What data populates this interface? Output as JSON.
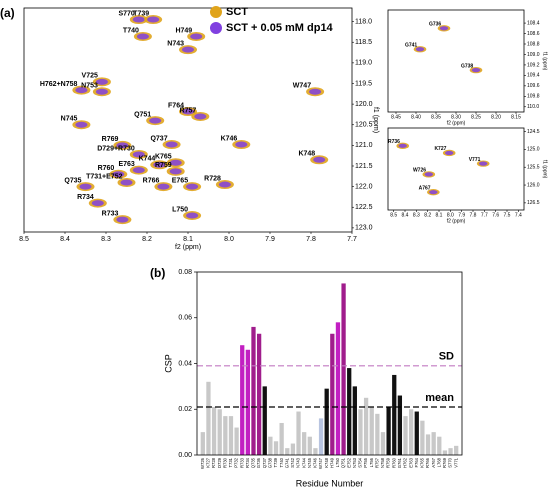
{
  "chart_data": [
    {
      "type": "scatter",
      "panel_label": "(a)",
      "xlabel": "f2 (ppm)",
      "ylabel": "f1 (ppm)",
      "series": [
        {
          "name": "SCT",
          "color": "#e0a41c"
        },
        {
          "name": "SCT + 0.05 mM dp14",
          "color": "#8040e0"
        }
      ],
      "labels": [
        "S770",
        "T739",
        "H749",
        "T740",
        "N743",
        "V725",
        "H762+N758",
        "N753",
        "F764",
        "W747",
        "R757",
        "Q751",
        "N745",
        "K746",
        "Q737",
        "R769",
        "D729+R730",
        "K765",
        "K744",
        "K748",
        "E763",
        "R759",
        "R760",
        "T731+E752",
        "R766",
        "E765",
        "R728",
        "Q735",
        "R734",
        "L750",
        "R733"
      ],
      "x": [
        8.22,
        8.185,
        8.08,
        8.21,
        8.1,
        8.31,
        8.36,
        8.31,
        8.1,
        7.79,
        8.07,
        8.18,
        8.36,
        7.97,
        8.14,
        8.26,
        8.22,
        8.13,
        8.17,
        7.78,
        8.22,
        8.13,
        8.27,
        8.25,
        8.16,
        8.09,
        8.01,
        8.35,
        8.32,
        8.09,
        8.26
      ],
      "y": [
        117.95,
        117.95,
        118.36,
        118.36,
        118.68,
        119.46,
        119.66,
        119.7,
        120.18,
        119.7,
        120.3,
        120.4,
        120.5,
        120.98,
        120.98,
        121.0,
        121.22,
        121.42,
        121.47,
        121.35,
        121.6,
        121.63,
        121.7,
        121.9,
        122.0,
        122.0,
        121.95,
        122.0,
        122.4,
        122.7,
        122.8
      ],
      "xlim": [
        8.5,
        7.7
      ],
      "xticks": [
        8.5,
        8.4,
        8.3,
        8.2,
        8.1,
        {
          "value": 8.0,
          "label": "8.0"
        },
        7.9,
        7.8,
        7.7
      ],
      "ylim": [
        117.67,
        123.1
      ],
      "yticks": [
        {
          "value": 118.0,
          "label": "118.0"
        },
        118.5,
        {
          "value": 119.0,
          "label": "119.0"
        },
        119.5,
        {
          "value": 120.0,
          "label": "120.0"
        },
        120.5,
        {
          "value": 121.0,
          "label": "121.0"
        },
        121.5,
        {
          "value": 122.0,
          "label": "122.0"
        },
        122.5,
        {
          "value": 123.0,
          "label": "123.0"
        }
      ]
    },
    {
      "type": "scatter",
      "xlabel": "f2 (ppm)",
      "ylabel": "f1 (ppm)",
      "series": [
        {
          "color": "#e0a41c"
        },
        {
          "color": "#8040e0"
        }
      ],
      "labels": [
        "G736",
        "G741",
        "G738"
      ],
      "x": [
        8.33,
        8.39,
        8.25
      ],
      "y": [
        108.5,
        108.9,
        109.3
      ],
      "xlim": [
        8.47,
        8.13
      ],
      "xticks": [
        8.45,
        {
          "value": 8.4,
          "label": "8.40"
        },
        8.35,
        {
          "value": 8.3,
          "label": "8.30"
        },
        8.25,
        {
          "value": 8.2,
          "label": "8.20"
        },
        8.15
      ],
      "ylim": [
        108.15,
        110.1
      ],
      "yticks": [
        108.4,
        108.6,
        108.8,
        {
          "value": 109.0,
          "label": "109.0"
        },
        109.2,
        109.4,
        109.6,
        109.8,
        {
          "value": 110.0,
          "label": "110.0"
        }
      ]
    },
    {
      "type": "scatter",
      "xlabel": "f2 (ppm)",
      "ylabel": "f1 (ppm)",
      "series": [
        {
          "color": "#e0a41c"
        },
        {
          "color": "#8040e0"
        }
      ],
      "labels": [
        "R736",
        "K727",
        "V771",
        "W726",
        "A767"
      ],
      "x": [
        8.42,
        8.01,
        7.71,
        8.19,
        8.15
      ],
      "y": [
        124.9,
        125.1,
        125.4,
        125.7,
        126.2
      ],
      "xlim": [
        8.55,
        7.35
      ],
      "xticks": [
        8.5,
        8.4,
        8.3,
        8.2,
        8.1,
        {
          "value": 8.0,
          "label": "8.0"
        },
        7.9,
        7.8,
        7.7,
        7.6,
        7.5,
        7.4
      ],
      "ylim": [
        124.4,
        126.7
      ],
      "yticks": [
        124.5,
        {
          "value": 125.0,
          "label": "125.0"
        },
        125.5,
        {
          "value": 126.0,
          "label": "126.0"
        },
        126.5
      ]
    },
    {
      "type": "bar",
      "panel_label": "(b)",
      "xlabel": "Residue Number",
      "ylabel": "CSP",
      "categories": [
        "W726",
        "K727",
        "R728",
        "D729",
        "R730",
        "T731",
        "P732",
        "R733",
        "R734",
        "Q735",
        "G736",
        "Q737",
        "G738",
        "T739",
        "T740",
        "G741",
        "S742",
        "N743",
        "K744",
        "N745",
        "K746",
        "W747",
        "K748",
        "H749",
        "L750",
        "Q751",
        "E752",
        "N753",
        "S754",
        "P755",
        "L756",
        "R757",
        "N758",
        "R759",
        "R760",
        "G761",
        "H762",
        "E763",
        "F764",
        "K765",
        "R766",
        "A767",
        "L768",
        "R769",
        "S770",
        "V771"
      ],
      "values": [
        0.01,
        0.032,
        0.021,
        0.02,
        0.017,
        0.017,
        0.012,
        0.048,
        0.046,
        0.056,
        0.053,
        0.03,
        0.008,
        0.006,
        0.014,
        0.003,
        0.005,
        0.019,
        0.01,
        0.008,
        0.003,
        0.016,
        0.029,
        0.053,
        0.058,
        0.075,
        0.038,
        0.03,
        0.02,
        0.025,
        0.021,
        0.018,
        0.01,
        0.021,
        0.035,
        0.026,
        0.017,
        0.02,
        0.019,
        0.015,
        0.009,
        0.01,
        0.008,
        0.002,
        0.003,
        0.004
      ],
      "colors": [
        "#c8c8c8",
        "#c8c8c8",
        "#c8c8c8",
        "#c8c8c8",
        "#c8c8c8",
        "#c8c8c8",
        "#c8c8c8",
        "#c21fc2",
        "#c21fc2",
        "#a01c8c",
        "#a01c8c",
        "#111111",
        "#c8c8c8",
        "#c8c8c8",
        "#c8c8c8",
        "#c8c8c8",
        "#c8c8c8",
        "#c8c8c8",
        "#c8c8c8",
        "#c8c8c8",
        "#c8c8c8",
        "#b8c4e0",
        "#111111",
        "#a01c8c",
        "#c21fc2",
        "#a01c8c",
        "#111111",
        "#111111",
        "#c8c8c8",
        "#c8c8c8",
        "#c8c8c8",
        "#c8c8c8",
        "#c8c8c8",
        "#111111",
        "#111111",
        "#111111",
        "#c8c8c8",
        "#c8c8c8",
        "#111111",
        "#c8c8c8",
        "#c8c8c8",
        "#c8c8c8",
        "#c8c8c8",
        "#c8c8c8",
        "#c8c8c8",
        "#c8c8c8"
      ],
      "ylim": [
        0,
        0.08
      ],
      "yticks": [
        {
          "value": 0,
          "label": "0.00"
        },
        {
          "value": 0.02,
          "label": "0.02"
        },
        {
          "value": 0.04,
          "label": "0.04"
        },
        {
          "value": 0.06,
          "label": "0.06"
        },
        {
          "value": 0.08,
          "label": "0.08"
        }
      ],
      "reference_lines": [
        {
          "label": "SD",
          "value": 0.039,
          "color": "#c27ac2"
        },
        {
          "label": "mean",
          "value": 0.021,
          "color": "#000000"
        }
      ]
    }
  ]
}
